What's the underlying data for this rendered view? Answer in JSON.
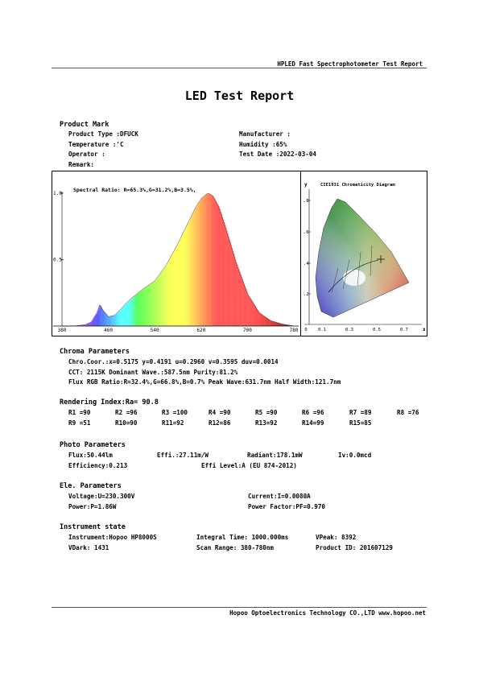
{
  "header": {
    "report_name": "HPLED Fast Spectrophotometer Test Report"
  },
  "title": "LED Test Report",
  "product_mark": {
    "heading": "Product Mark",
    "product_type": "Product Type :DFUCK",
    "manufacturer": "Manufacturer :",
    "temperature": "Temperature :'C",
    "humidity": "Humidity :65%",
    "operator": "Operator :",
    "test_date": "Test Date :2022-03-04",
    "remark": "Remark:"
  },
  "spectrum": {
    "ratio_label": "Spectral Ratio:  R=65.3%,G=31.2%,B=3.5%,",
    "y_ticks": [
      "1.0",
      "0.5"
    ],
    "x_ticks": [
      "380",
      "460",
      "540",
      "620",
      "700",
      "780"
    ]
  },
  "cie": {
    "title": "CIE1931 Chromaticity Diagram",
    "y_axis": "y",
    "x_axis": "x",
    "y_ticks": [
      ".8",
      ".6",
      ".4",
      ".2"
    ],
    "x_ticks": [
      "0",
      "0.1",
      "0.3",
      "0.5",
      "0.7"
    ]
  },
  "chart_data": {
    "type": "area",
    "x": [
      380,
      400,
      420,
      430,
      440,
      445,
      450,
      460,
      470,
      480,
      490,
      500,
      520,
      540,
      560,
      580,
      600,
      610,
      620,
      628,
      632,
      640,
      650,
      660,
      680,
      700,
      720,
      740,
      760,
      780
    ],
    "values": [
      0.0,
      0.0,
      0.01,
      0.03,
      0.1,
      0.16,
      0.12,
      0.07,
      0.08,
      0.12,
      0.17,
      0.21,
      0.28,
      0.34,
      0.46,
      0.62,
      0.8,
      0.89,
      0.96,
      0.99,
      1.0,
      0.98,
      0.9,
      0.77,
      0.48,
      0.24,
      0.1,
      0.04,
      0.015,
      0.0
    ],
    "xlim": [
      380,
      780
    ],
    "ylim": [
      0,
      1.0
    ]
  },
  "chroma": {
    "heading": "Chroma Parameters",
    "line1": "Chro.Coor.:x=0.5175  y=0.4191     u=0.2960  v=0.3595     duv=0.0014",
    "line2": "CCT: 2115K   Dominant Wave.:587.5nm   Purity:81.2%",
    "line3": "Flux RGB Ratio:R=32.4%,G=66.8%,B=0.7%   Peak Wave:631.7nm   Half Width:121.7nm"
  },
  "rendering": {
    "heading": "Rendering Index:Ra= 90.8",
    "row1": [
      "R1 =90",
      "R2 =96",
      "R3 =100",
      "R4 =90",
      "R5 =90",
      "R6 =96",
      "R7 =89",
      "R8 =76"
    ],
    "row2": [
      "R9 =51",
      "R10=90",
      "R11=92",
      "R12=86",
      "R13=92",
      "R14=99",
      "R15=85"
    ]
  },
  "photo": {
    "heading": "Photo Parameters",
    "flux": "Flux:50.44lm",
    "effi": "Effi.:27.11m/W",
    "radiant": "Radiant:178.1mW",
    "iv": "Iv:0.0mcd",
    "efficiency": "Efficiency:0.213",
    "effi_level": "Effi Level:A (EU 874-2012)"
  },
  "ele": {
    "heading": "Ele. Parameters",
    "voltage": "Voltage:U=230.300V",
    "current": "Current:I=0.0080A",
    "power": "Power:P=1.86W",
    "power_factor": "Power Factor:PF=0.970"
  },
  "instrument": {
    "heading": "Instrument state",
    "instrument": "Instrument:Hopoo HP8000S",
    "integral_time": "Integral Time: 1000.000ms",
    "vpeak": "VPeak: 8392",
    "vdark": "VDark: 1431",
    "scan_range": "Scan Range: 380-780nm",
    "product_id": "Product ID: 201607129"
  },
  "footer": {
    "company": "Hopoo Optoelectronics Technology CO.,LTD  www.hopoo.net"
  }
}
